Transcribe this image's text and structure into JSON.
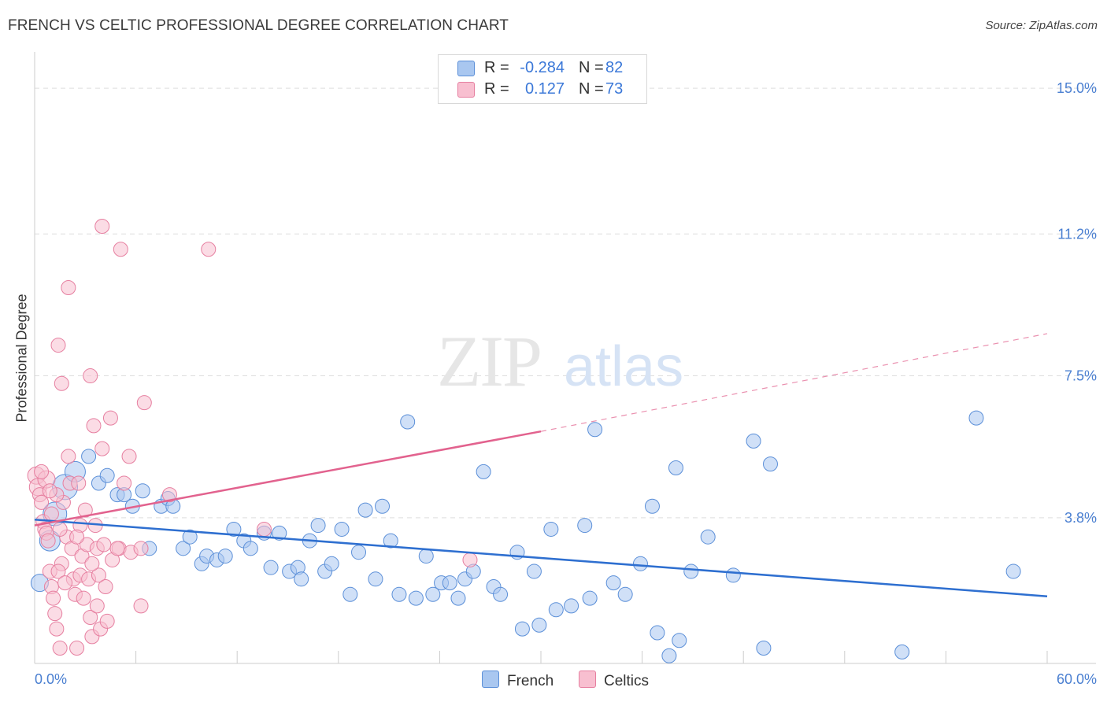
{
  "title": "FRENCH VS CELTIC PROFESSIONAL DEGREE CORRELATION CHART",
  "source": "Source: ZipAtlas.com",
  "watermark": {
    "zip": "ZIP",
    "atlas": "atlas"
  },
  "colors": {
    "french_fill": "#a9c7f0",
    "french_stroke": "#5b8fd8",
    "french_line": "#2e6fd0",
    "celtics_fill": "#f8bfd0",
    "celtics_stroke": "#e67fa0",
    "celtics_line": "#e2628e",
    "grid": "#dddddd",
    "axis_label": "#4a7fd1"
  },
  "legend": {
    "rows": [
      {
        "r_label": "R =",
        "r_value": "-0.284",
        "n_label": "N =",
        "n_value": "82"
      },
      {
        "r_label": "R =",
        "r_value": "0.127",
        "n_label": "N =",
        "n_value": "73"
      }
    ]
  },
  "bottom_legend": [
    "French",
    "Celtics"
  ],
  "chart_data": {
    "type": "scatter",
    "title": "FRENCH VS CELTIC PROFESSIONAL DEGREE CORRELATION CHART",
    "xlabel": "",
    "ylabel": "Professional Degree",
    "xlim": [
      0,
      60
    ],
    "ylim": [
      0,
      15.7
    ],
    "x_tick_labels": [
      "0.0%",
      "60.0%"
    ],
    "y_ticks": [
      {
        "value": 3.8,
        "label": "3.8%"
      },
      {
        "value": 7.5,
        "label": "7.5%"
      },
      {
        "value": 11.2,
        "label": "11.2%"
      },
      {
        "value": 15.0,
        "label": "15.0%"
      }
    ],
    "x_minor_ticks": [
      0,
      6,
      12,
      18,
      24,
      30,
      36,
      42,
      48,
      54,
      60
    ],
    "legend_position": "top-center",
    "series": [
      {
        "name": "French",
        "R": -0.284,
        "N": 82,
        "trend": {
          "x1": 0,
          "y1": 3.75,
          "x2": 60,
          "y2": 1.75,
          "style": "solid"
        },
        "points": [
          [
            0.3,
            2.1,
            22
          ],
          [
            0.9,
            3.2,
            26
          ],
          [
            1.2,
            3.9,
            30
          ],
          [
            1.8,
            4.6,
            32
          ],
          [
            2.4,
            5.0,
            26
          ],
          [
            3.2,
            5.4,
            18
          ],
          [
            3.8,
            4.7,
            18
          ],
          [
            4.3,
            4.9,
            18
          ],
          [
            4.9,
            4.4,
            18
          ],
          [
            5.3,
            4.4,
            18
          ],
          [
            5.8,
            4.1,
            18
          ],
          [
            6.4,
            4.5,
            18
          ],
          [
            6.8,
            3.0,
            18
          ],
          [
            7.5,
            4.1,
            18
          ],
          [
            7.9,
            4.3,
            18
          ],
          [
            8.2,
            4.1,
            18
          ],
          [
            8.8,
            3.0,
            18
          ],
          [
            9.2,
            3.3,
            18
          ],
          [
            9.9,
            2.6,
            18
          ],
          [
            10.2,
            2.8,
            18
          ],
          [
            10.8,
            2.7,
            18
          ],
          [
            11.3,
            2.8,
            18
          ],
          [
            11.8,
            3.5,
            18
          ],
          [
            12.4,
            3.2,
            18
          ],
          [
            12.8,
            3.0,
            18
          ],
          [
            13.6,
            3.4,
            18
          ],
          [
            14.0,
            2.5,
            18
          ],
          [
            14.5,
            3.4,
            18
          ],
          [
            15.1,
            2.4,
            18
          ],
          [
            15.6,
            2.5,
            18
          ],
          [
            15.8,
            2.2,
            18
          ],
          [
            16.3,
            3.2,
            18
          ],
          [
            16.8,
            3.6,
            18
          ],
          [
            17.2,
            2.4,
            18
          ],
          [
            17.6,
            2.6,
            18
          ],
          [
            18.2,
            3.5,
            18
          ],
          [
            18.7,
            1.8,
            18
          ],
          [
            19.2,
            2.9,
            18
          ],
          [
            19.6,
            4.0,
            18
          ],
          [
            20.2,
            2.2,
            18
          ],
          [
            20.6,
            4.1,
            18
          ],
          [
            21.1,
            3.2,
            18
          ],
          [
            21.6,
            1.8,
            18
          ],
          [
            22.1,
            6.3,
            18
          ],
          [
            22.6,
            1.7,
            18
          ],
          [
            23.2,
            2.8,
            18
          ],
          [
            23.6,
            1.8,
            18
          ],
          [
            24.1,
            2.1,
            18
          ],
          [
            24.6,
            2.1,
            18
          ],
          [
            25.1,
            1.7,
            18
          ],
          [
            25.5,
            2.2,
            18
          ],
          [
            26.0,
            2.4,
            18
          ],
          [
            26.6,
            5.0,
            18
          ],
          [
            27.2,
            2.0,
            18
          ],
          [
            27.6,
            1.8,
            18
          ],
          [
            28.6,
            2.9,
            18
          ],
          [
            28.9,
            0.9,
            18
          ],
          [
            29.6,
            2.4,
            18
          ],
          [
            29.9,
            1.0,
            18
          ],
          [
            30.6,
            3.5,
            18
          ],
          [
            30.9,
            1.4,
            18
          ],
          [
            31.8,
            1.5,
            18
          ],
          [
            32.6,
            3.6,
            18
          ],
          [
            32.9,
            1.7,
            18
          ],
          [
            33.2,
            6.1,
            18
          ],
          [
            34.3,
            2.1,
            18
          ],
          [
            35.0,
            1.8,
            18
          ],
          [
            35.9,
            2.6,
            18
          ],
          [
            36.6,
            4.1,
            18
          ],
          [
            36.9,
            0.8,
            18
          ],
          [
            37.6,
            0.2,
            18
          ],
          [
            38.0,
            5.1,
            18
          ],
          [
            38.2,
            0.6,
            18
          ],
          [
            38.9,
            2.4,
            18
          ],
          [
            39.9,
            3.3,
            18
          ],
          [
            41.4,
            2.3,
            18
          ],
          [
            42.6,
            5.8,
            18
          ],
          [
            43.2,
            0.4,
            18
          ],
          [
            43.6,
            5.2,
            18
          ],
          [
            51.4,
            0.3,
            18
          ],
          [
            55.8,
            6.4,
            18
          ],
          [
            58.0,
            2.4,
            18
          ]
        ]
      },
      {
        "name": "Celtics",
        "R": 0.127,
        "N": 73,
        "trend": {
          "x1": 0,
          "y1": 3.6,
          "x2": 30,
          "y2": 6.05,
          "style": "solid",
          "dashed_to": {
            "x": 60,
            "y": 8.6
          }
        },
        "points": [
          [
            0.1,
            4.9,
            22
          ],
          [
            0.2,
            4.6,
            22
          ],
          [
            0.3,
            4.4,
            18
          ],
          [
            0.4,
            4.2,
            18
          ],
          [
            0.5,
            3.7,
            18
          ],
          [
            0.6,
            3.5,
            18
          ],
          [
            0.7,
            3.4,
            18
          ],
          [
            0.8,
            3.2,
            18
          ],
          [
            0.9,
            2.4,
            18
          ],
          [
            1.0,
            2.0,
            18
          ],
          [
            1.1,
            1.7,
            18
          ],
          [
            1.2,
            1.3,
            18
          ],
          [
            1.3,
            0.9,
            18
          ],
          [
            1.5,
            0.4,
            18
          ],
          [
            1.6,
            2.6,
            18
          ],
          [
            1.7,
            4.2,
            18
          ],
          [
            1.9,
            3.3,
            18
          ],
          [
            2.0,
            5.4,
            18
          ],
          [
            2.1,
            4.7,
            18
          ],
          [
            2.2,
            3.0,
            18
          ],
          [
            2.3,
            2.2,
            18
          ],
          [
            2.4,
            1.8,
            18
          ],
          [
            2.5,
            0.4,
            18
          ],
          [
            2.6,
            4.7,
            18
          ],
          [
            2.7,
            2.3,
            18
          ],
          [
            2.8,
            2.8,
            18
          ],
          [
            2.9,
            1.7,
            18
          ],
          [
            3.0,
            4.0,
            18
          ],
          [
            3.1,
            3.1,
            18
          ],
          [
            3.2,
            2.2,
            18
          ],
          [
            3.3,
            1.2,
            18
          ],
          [
            3.4,
            0.7,
            18
          ],
          [
            3.5,
            6.2,
            18
          ],
          [
            3.6,
            3.6,
            18
          ],
          [
            3.7,
            3.0,
            18
          ],
          [
            3.8,
            2.3,
            18
          ],
          [
            3.9,
            0.9,
            18
          ],
          [
            4.0,
            5.6,
            18
          ],
          [
            4.1,
            3.1,
            18
          ],
          [
            4.2,
            2.0,
            18
          ],
          [
            4.3,
            1.1,
            18
          ],
          [
            1.4,
            8.3,
            18
          ],
          [
            1.6,
            7.3,
            18
          ],
          [
            2.0,
            9.8,
            18
          ],
          [
            3.3,
            7.5,
            18
          ],
          [
            4.5,
            6.4,
            18
          ],
          [
            5.1,
            10.8,
            18
          ],
          [
            4.0,
            11.4,
            18
          ],
          [
            5.0,
            3.0,
            18
          ],
          [
            4.6,
            2.7,
            18
          ],
          [
            5.3,
            4.7,
            18
          ],
          [
            5.6,
            5.4,
            18
          ],
          [
            6.3,
            1.5,
            18
          ],
          [
            6.5,
            6.8,
            18
          ],
          [
            8.0,
            4.4,
            18
          ],
          [
            10.3,
            10.8,
            18
          ],
          [
            0.7,
            4.8,
            22
          ],
          [
            1.0,
            3.9,
            18
          ],
          [
            1.4,
            2.4,
            18
          ],
          [
            1.5,
            3.5,
            18
          ],
          [
            2.7,
            3.6,
            18
          ],
          [
            3.7,
            1.5,
            18
          ],
          [
            4.9,
            3.0,
            18
          ],
          [
            5.7,
            2.9,
            18
          ],
          [
            6.3,
            3.0,
            18
          ],
          [
            13.6,
            3.5,
            18
          ],
          [
            25.8,
            2.7,
            18
          ],
          [
            1.3,
            4.4,
            18
          ],
          [
            2.5,
            3.3,
            18
          ],
          [
            0.9,
            4.5,
            18
          ],
          [
            1.8,
            2.1,
            18
          ],
          [
            3.4,
            2.6,
            18
          ],
          [
            0.4,
            5.0,
            18
          ]
        ]
      }
    ]
  }
}
